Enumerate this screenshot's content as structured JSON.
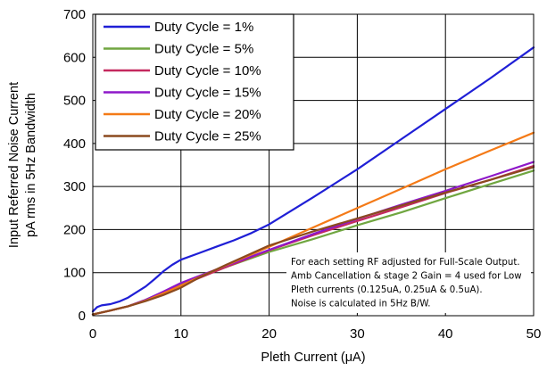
{
  "chart_data": {
    "type": "line",
    "xlabel": "Pleth Current (μA)",
    "ylabel_lines": [
      "Input Referred Noise Current",
      "pA rms in 5Hz Bandwidth"
    ],
    "xlim": [
      0,
      50
    ],
    "ylim": [
      0,
      700
    ],
    "xticks": [
      "0",
      "10",
      "20",
      "30",
      "40",
      "50"
    ],
    "yticks": [
      "0",
      "100",
      "200",
      "300",
      "400",
      "500",
      "600",
      "700"
    ],
    "grid": true,
    "legend_position": "top-left",
    "series": [
      {
        "name": "Duty Cycle = 1%",
        "color": "#1f1fd6",
        "x": [
          0,
          0.5,
          1,
          2,
          3,
          4,
          5,
          6,
          7,
          8,
          9,
          10,
          12,
          14,
          16,
          18,
          20,
          25,
          30,
          35,
          40,
          45,
          50
        ],
        "y": [
          10,
          20,
          24,
          27,
          33,
          42,
          55,
          68,
          85,
          103,
          118,
          130,
          145,
          160,
          175,
          192,
          212,
          275,
          340,
          410,
          480,
          550,
          623
        ]
      },
      {
        "name": "Duty Cycle = 5%",
        "color": "#70a640",
        "x": [
          0,
          2,
          4,
          6,
          8,
          10,
          12,
          15,
          20,
          25,
          30,
          35,
          40,
          45,
          50
        ],
        "y": [
          3,
          12,
          22,
          37,
          55,
          73,
          88,
          112,
          148,
          178,
          210,
          240,
          273,
          305,
          337
        ]
      },
      {
        "name": "Duty Cycle = 10%",
        "color": "#c4295e",
        "x": [
          0,
          2,
          4,
          6,
          8,
          10,
          12,
          15,
          20,
          25,
          30,
          35,
          40,
          45,
          50
        ],
        "y": [
          3,
          12,
          22,
          36,
          53,
          70,
          87,
          112,
          152,
          187,
          220,
          252,
          285,
          315,
          348
        ]
      },
      {
        "name": "Duty Cycle = 15%",
        "color": "#8e18c9",
        "x": [
          0,
          2,
          4,
          6,
          8,
          10,
          12,
          15,
          20,
          25,
          30,
          35,
          40,
          45,
          50
        ],
        "y": [
          3,
          12,
          22,
          37,
          56,
          76,
          92,
          115,
          153,
          190,
          225,
          258,
          290,
          323,
          357
        ]
      },
      {
        "name": "Duty Cycle = 20%",
        "color": "#f47a17",
        "x": [
          0,
          2,
          4,
          6,
          8,
          10,
          12,
          15,
          20,
          25,
          30,
          35,
          40,
          45,
          50
        ],
        "y": [
          3,
          12,
          22,
          35,
          52,
          70,
          89,
          116,
          160,
          205,
          250,
          295,
          340,
          383,
          425
        ]
      },
      {
        "name": "Duty Cycle = 25%",
        "color": "#8b4a1f",
        "x": [
          0,
          2,
          4,
          6,
          8,
          10,
          12,
          15,
          20,
          25,
          30,
          35,
          40,
          45,
          50
        ],
        "y": [
          3,
          12,
          22,
          34,
          48,
          65,
          88,
          117,
          163,
          196,
          226,
          256,
          286,
          315,
          345
        ]
      }
    ],
    "annotation_lines": [
      "For each setting RF adjusted for Full-Scale Output.",
      "Amb Cancellation & stage 2 Gain = 4 used for Low",
      "Pleth currents (0.125uA, 0.25uA & 0.5uA).",
      "Noise is calculated in 5Hz B/W."
    ]
  }
}
